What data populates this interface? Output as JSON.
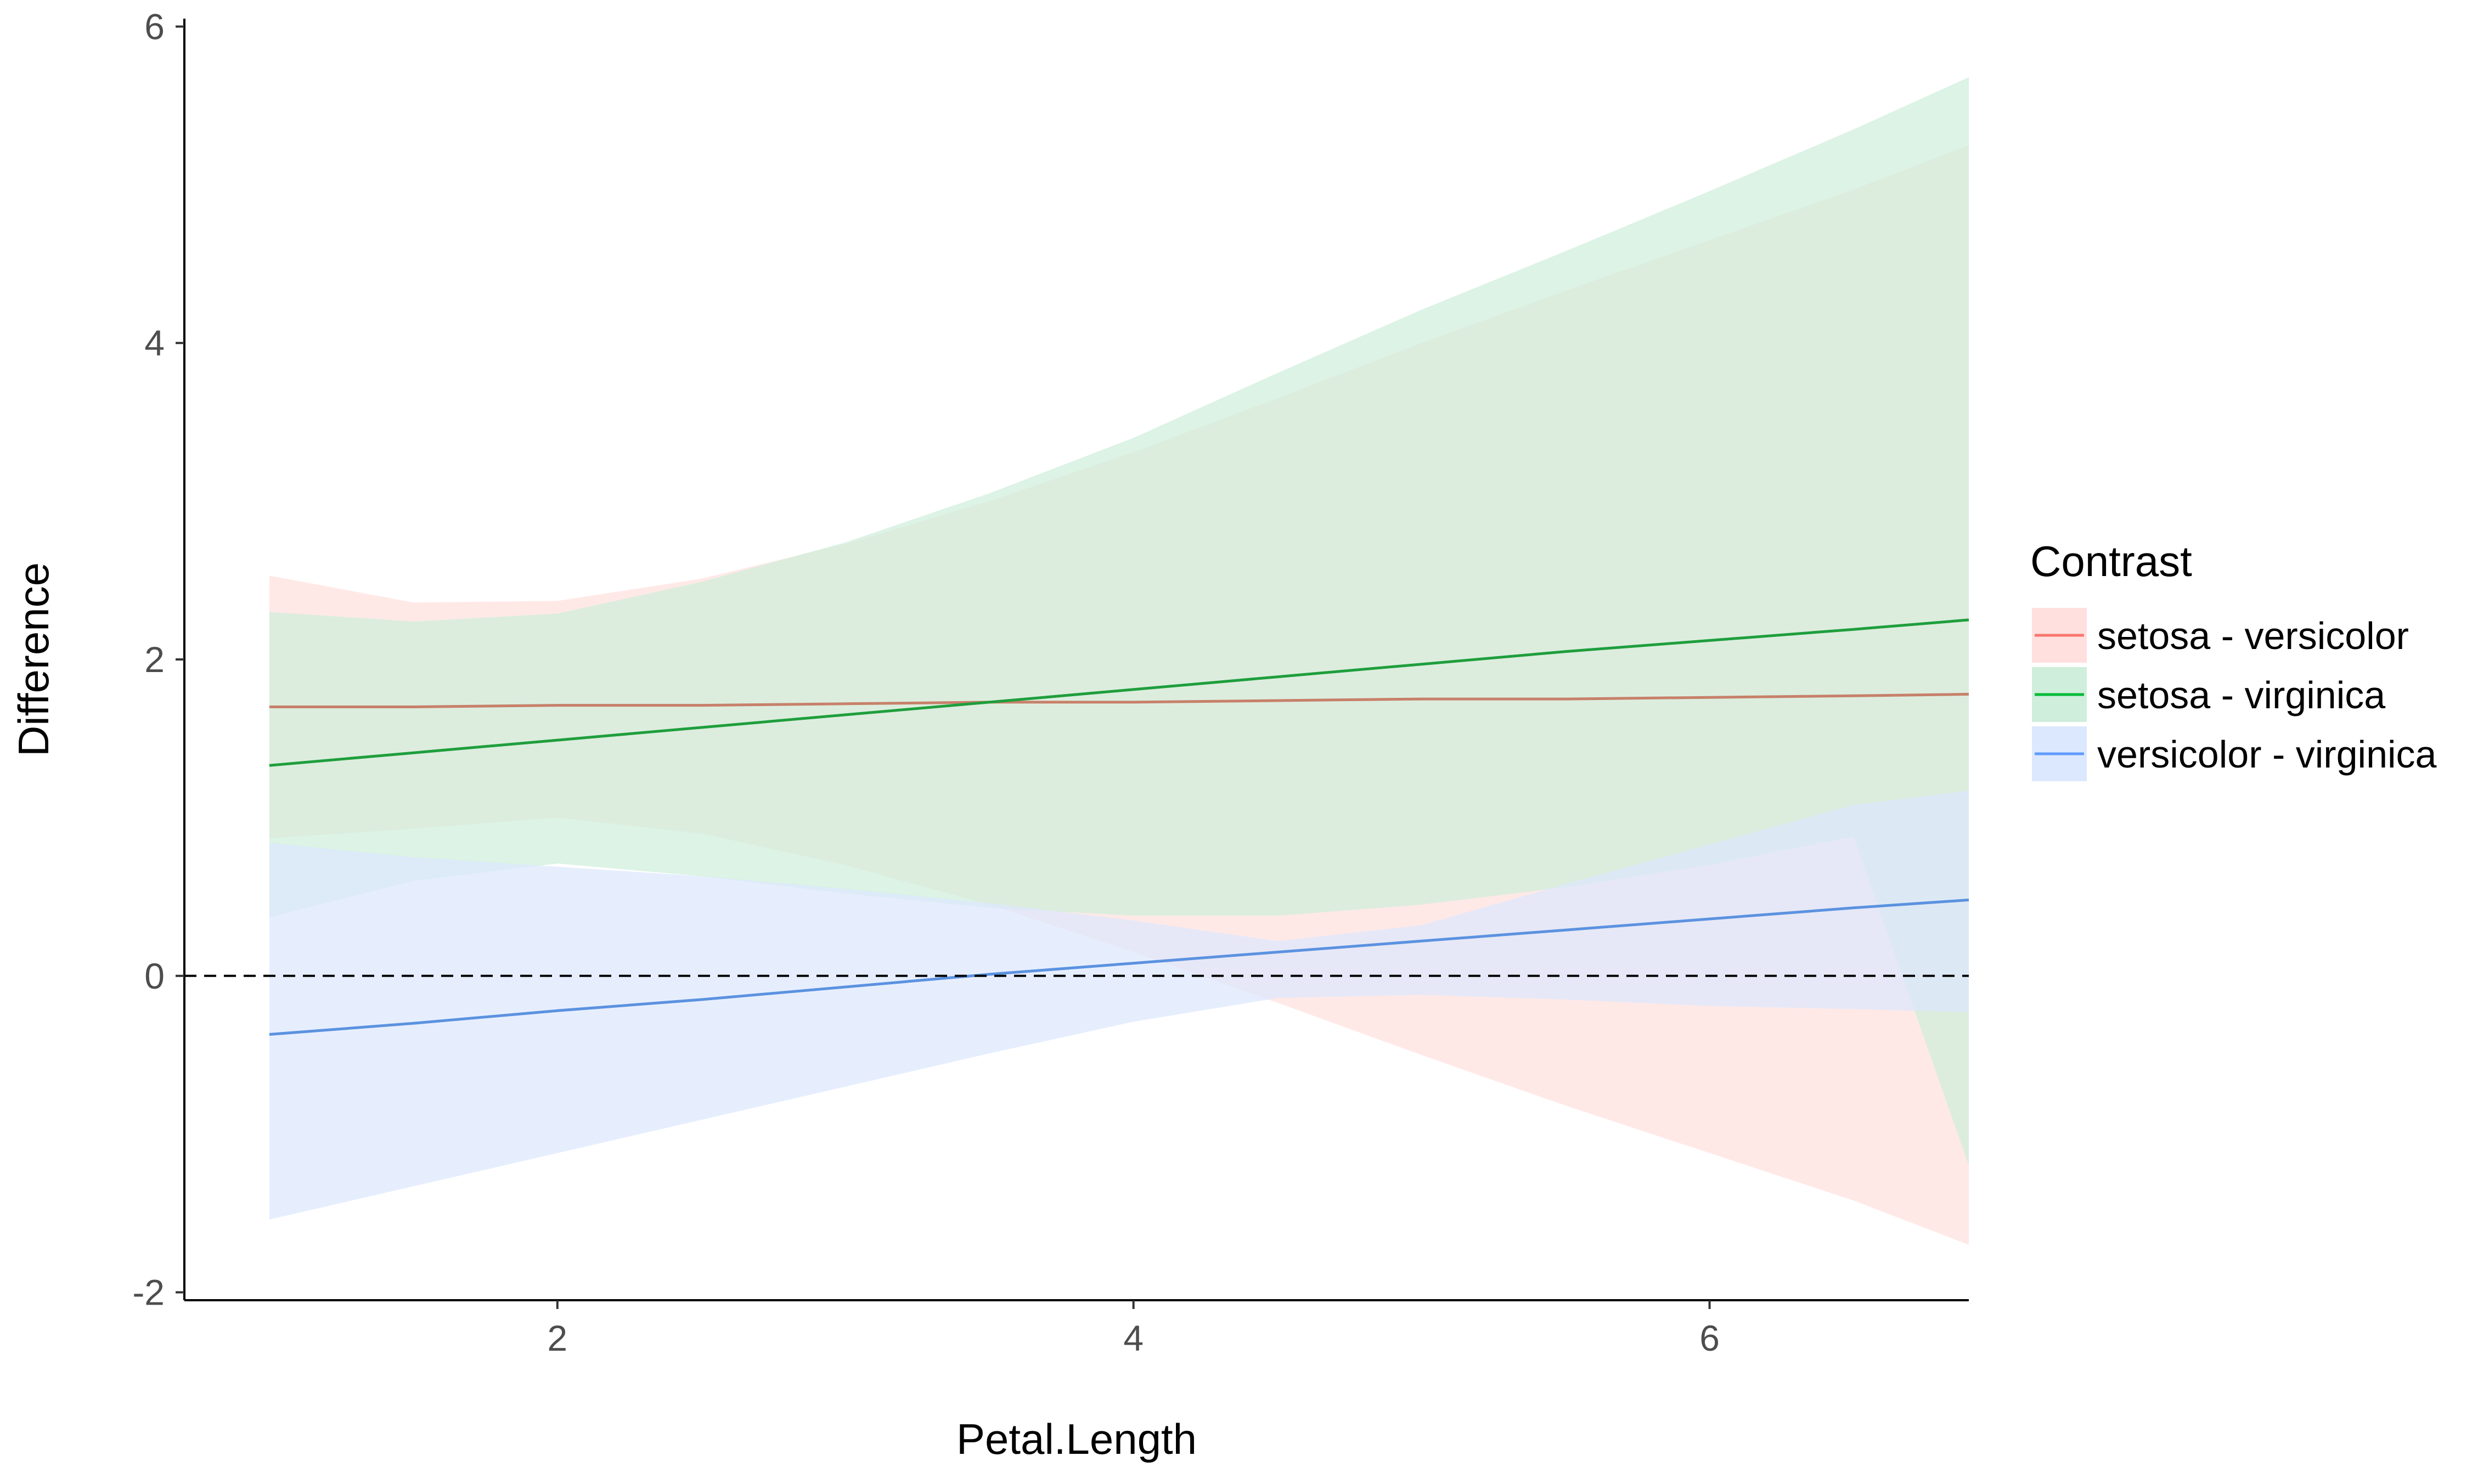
{
  "chart_data": {
    "type": "line",
    "title": "",
    "xlabel": "Petal.Length",
    "ylabel": "Difference",
    "xlim": [
      0.705,
      6.9
    ],
    "ylim": [
      -2.05,
      6.05
    ],
    "x_ticks": [
      2,
      4,
      6
    ],
    "y_ticks": [
      -2,
      0,
      2,
      4,
      6
    ],
    "x_tick_labels": [
      "2",
      "4",
      "6"
    ],
    "y_tick_labels": [
      "-2",
      "0",
      "2",
      "4",
      "6"
    ],
    "grid": false,
    "reference_line": {
      "y": 0,
      "style": "dashed"
    },
    "legend": {
      "title": "Contrast",
      "position": "right"
    },
    "series": [
      {
        "name": "setosa - versicolor",
        "color": "#f8766d",
        "line_color": "#c7806a",
        "fill_color": "#ffe0de",
        "points": [
          {
            "x": 1.0,
            "y": 1.7,
            "lower": 0.87,
            "upper": 2.53
          },
          {
            "x": 1.5,
            "y": 1.7,
            "lower": 0.93,
            "upper": 2.36
          },
          {
            "x": 2.0,
            "y": 1.71,
            "lower": 1.0,
            "upper": 2.37
          },
          {
            "x": 2.5,
            "y": 1.71,
            "lower": 0.9,
            "upper": 2.51
          },
          {
            "x": 3.0,
            "y": 1.72,
            "lower": 0.7,
            "upper": 2.73
          },
          {
            "x": 3.5,
            "y": 1.73,
            "lower": 0.45,
            "upper": 3.0
          },
          {
            "x": 4.0,
            "y": 1.73,
            "lower": 0.15,
            "upper": 3.31
          },
          {
            "x": 4.5,
            "y": 1.74,
            "lower": -0.17,
            "upper": 3.65
          },
          {
            "x": 5.0,
            "y": 1.75,
            "lower": -0.5,
            "upper": 4.0
          },
          {
            "x": 5.5,
            "y": 1.75,
            "lower": -0.82,
            "upper": 4.33
          },
          {
            "x": 6.0,
            "y": 1.76,
            "lower": -1.12,
            "upper": 4.65
          },
          {
            "x": 6.5,
            "y": 1.77,
            "lower": -1.42,
            "upper": 4.97
          },
          {
            "x": 6.9,
            "y": 1.78,
            "lower": -1.7,
            "upper": 5.25
          }
        ]
      },
      {
        "name": "setosa - virginica",
        "color": "#00ba38",
        "line_color": "#1e9e3c",
        "fill_color": "#cfeedb",
        "points": [
          {
            "x": 1.0,
            "y": 1.33,
            "lower": 0.37,
            "upper": 2.3
          },
          {
            "x": 1.5,
            "y": 1.41,
            "lower": 0.6,
            "upper": 2.24
          },
          {
            "x": 2.0,
            "y": 1.49,
            "lower": 0.71,
            "upper": 2.29
          },
          {
            "x": 2.5,
            "y": 1.57,
            "lower": 0.63,
            "upper": 2.49
          },
          {
            "x": 3.0,
            "y": 1.65,
            "lower": 0.52,
            "upper": 2.74
          },
          {
            "x": 3.5,
            "y": 1.73,
            "lower": 0.43,
            "upper": 3.05
          },
          {
            "x": 4.0,
            "y": 1.81,
            "lower": 0.38,
            "upper": 3.4
          },
          {
            "x": 4.5,
            "y": 1.89,
            "lower": 0.38,
            "upper": 3.81
          },
          {
            "x": 5.0,
            "y": 1.97,
            "lower": 0.45,
            "upper": 4.21
          },
          {
            "x": 5.5,
            "y": 2.05,
            "lower": 0.56,
            "upper": 4.58
          },
          {
            "x": 6.0,
            "y": 2.12,
            "lower": 0.7,
            "upper": 4.96
          },
          {
            "x": 6.5,
            "y": 2.19,
            "lower": 0.88,
            "upper": 5.35
          },
          {
            "x": 6.9,
            "y": 2.25,
            "lower": -1.2,
            "upper": 5.68
          }
        ]
      },
      {
        "name": "versicolor - virginica",
        "color": "#619cff",
        "line_color": "#5b92e0",
        "fill_color": "#dce8fd",
        "points": [
          {
            "x": 1.0,
            "y": -0.37,
            "lower": -1.54,
            "upper": 0.84
          },
          {
            "x": 1.5,
            "y": -0.3,
            "lower": -1.33,
            "upper": 0.75
          },
          {
            "x": 2.0,
            "y": -0.22,
            "lower": -1.12,
            "upper": 0.69
          },
          {
            "x": 2.5,
            "y": -0.15,
            "lower": -0.91,
            "upper": 0.63
          },
          {
            "x": 3.0,
            "y": -0.07,
            "lower": -0.7,
            "upper": 0.55
          },
          {
            "x": 3.5,
            "y": 0.01,
            "lower": -0.49,
            "upper": 0.46
          },
          {
            "x": 4.0,
            "y": 0.08,
            "lower": -0.29,
            "upper": 0.35
          },
          {
            "x": 4.5,
            "y": 0.15,
            "lower": -0.14,
            "upper": 0.22
          },
          {
            "x": 5.0,
            "y": 0.22,
            "lower": -0.12,
            "upper": 0.32
          },
          {
            "x": 5.5,
            "y": 0.29,
            "lower": -0.15,
            "upper": 0.58
          },
          {
            "x": 6.0,
            "y": 0.36,
            "lower": -0.19,
            "upper": 0.83
          },
          {
            "x": 6.5,
            "y": 0.43,
            "lower": -0.21,
            "upper": 1.08
          },
          {
            "x": 6.9,
            "y": 0.48,
            "lower": -0.23,
            "upper": 1.17
          }
        ]
      }
    ]
  }
}
